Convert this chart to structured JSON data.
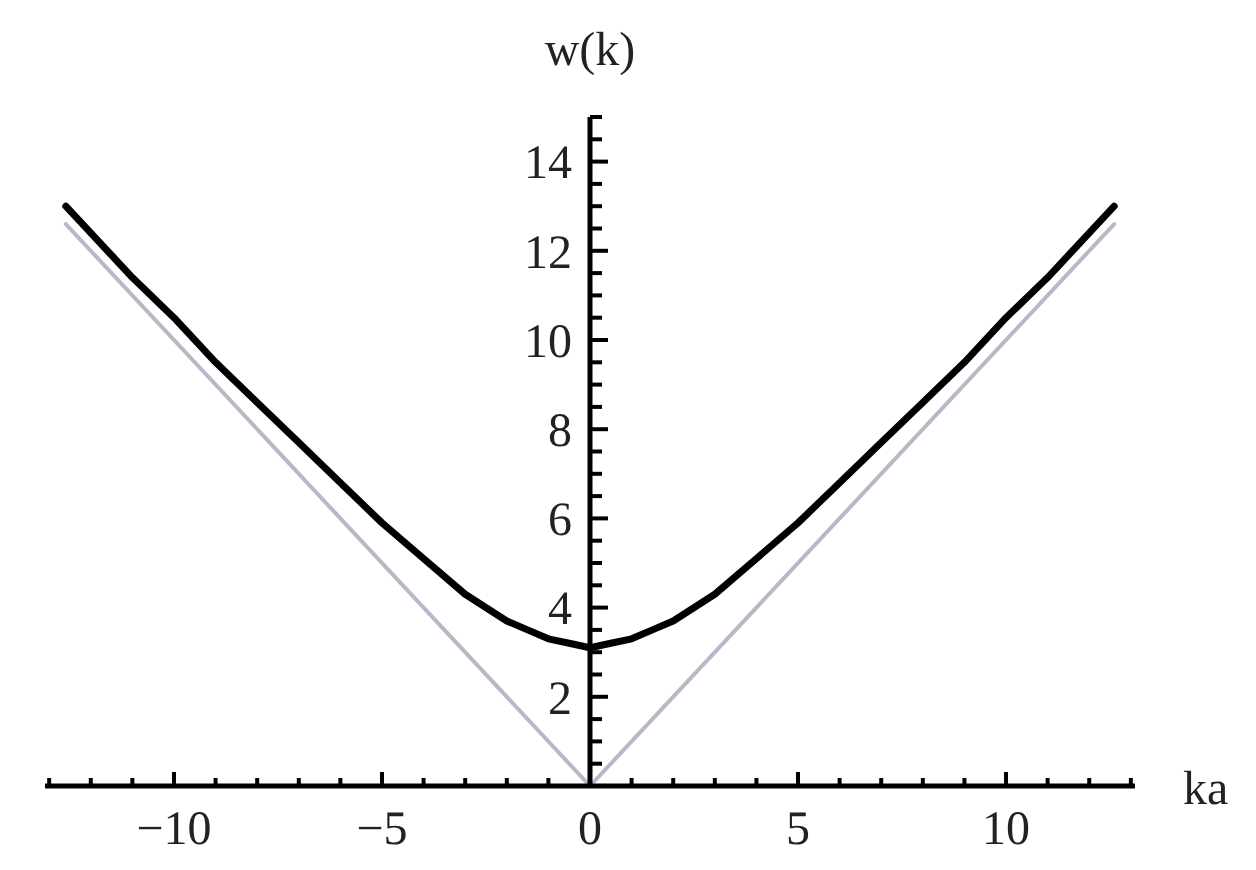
{
  "chart_data": {
    "type": "line",
    "xlabel": "ka",
    "ylabel": "w(k)",
    "xlim": [
      -13.1,
      13.1
    ],
    "ylim": [
      0,
      15
    ],
    "xticks": [
      {
        "value": -13,
        "label": null
      },
      {
        "value": -12,
        "label": null
      },
      {
        "value": -11,
        "label": null
      },
      {
        "value": -10,
        "label": "−10"
      },
      {
        "value": -9,
        "label": null
      },
      {
        "value": -8,
        "label": null
      },
      {
        "value": -7,
        "label": null
      },
      {
        "value": -6,
        "label": null
      },
      {
        "value": -5,
        "label": "−5"
      },
      {
        "value": -4,
        "label": null
      },
      {
        "value": -3,
        "label": null
      },
      {
        "value": -2,
        "label": null
      },
      {
        "value": -1,
        "label": null
      },
      0,
      {
        "value": 1,
        "label": null
      },
      {
        "value": 2,
        "label": null
      },
      {
        "value": 3,
        "label": null
      },
      {
        "value": 4,
        "label": null
      },
      5,
      {
        "value": 6,
        "label": null
      },
      {
        "value": 7,
        "label": null
      },
      {
        "value": 8,
        "label": null
      },
      {
        "value": 9,
        "label": null
      },
      10,
      {
        "value": 11,
        "label": null
      },
      {
        "value": 12,
        "label": null
      },
      {
        "value": 13,
        "label": null
      }
    ],
    "yticks": [
      {
        "value": 0.5,
        "label": null
      },
      {
        "value": 1,
        "label": null
      },
      {
        "value": 1.5,
        "label": null
      },
      2,
      {
        "value": 2.5,
        "label": null
      },
      {
        "value": 3,
        "label": null
      },
      {
        "value": 3.5,
        "label": null
      },
      4,
      {
        "value": 4.5,
        "label": null
      },
      {
        "value": 5,
        "label": null
      },
      {
        "value": 5.5,
        "label": null
      },
      6,
      {
        "value": 6.5,
        "label": null
      },
      {
        "value": 7,
        "label": null
      },
      {
        "value": 7.5,
        "label": null
      },
      8,
      {
        "value": 8.5,
        "label": null
      },
      {
        "value": 9,
        "label": null
      },
      {
        "value": 9.5,
        "label": null
      },
      10,
      {
        "value": 10.5,
        "label": null
      },
      {
        "value": 11,
        "label": null
      },
      {
        "value": 11.5,
        "label": null
      },
      12,
      {
        "value": 12.5,
        "label": null
      },
      {
        "value": 13,
        "label": null
      },
      {
        "value": 13.5,
        "label": null
      },
      14,
      {
        "value": 14.5,
        "label": null
      },
      {
        "value": 15,
        "label": null
      }
    ],
    "series": [
      {
        "color": "#b8b8c8",
        "x": [
          -12.6,
          0,
          12.6
        ],
        "values": [
          12.6,
          0,
          12.6
        ]
      },
      {
        "color": "#000000",
        "x": [
          -12.6,
          -11,
          -10,
          -9,
          -8,
          -7,
          -6,
          -5,
          -4,
          -3,
          -2,
          -1.5,
          -1,
          -0.5,
          0,
          0.5,
          1,
          1.5,
          2,
          3,
          4,
          5,
          6,
          7,
          8,
          9,
          10,
          11,
          12.6
        ],
        "values": [
          13.0,
          11.4,
          10.5,
          9.5,
          8.6,
          7.7,
          6.8,
          5.9,
          5.1,
          4.3,
          3.7,
          3.5,
          3.3,
          3.2,
          3.1,
          3.2,
          3.3,
          3.5,
          3.7,
          4.3,
          5.1,
          5.9,
          6.8,
          7.7,
          8.6,
          9.5,
          10.5,
          11.4,
          13.0
        ]
      }
    ]
  }
}
